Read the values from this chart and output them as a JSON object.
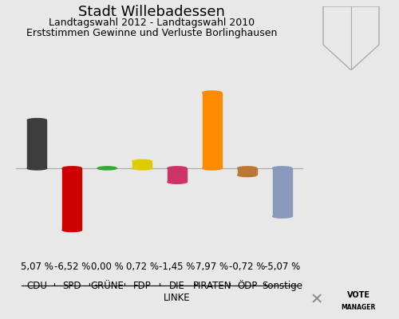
{
  "title": "Stadt Willebadessen",
  "subtitle1": "Landtagswahl 2012 - Landtagswahl 2010",
  "subtitle2": "Erststimmen Gewinne und Verluste Borlinghausen",
  "categories": [
    "CDU",
    "SPD",
    "GRÜNE",
    "FDP",
    "DIE\nLINKE",
    "PIRATEN",
    "ÖDP",
    "Sonstige"
  ],
  "values": [
    5.07,
    -6.52,
    0.0,
    0.72,
    -1.45,
    7.97,
    -0.72,
    -5.07
  ],
  "labels": [
    "5,07 %",
    "-6,52 %",
    "0,00 %",
    "0,72 %",
    "-1,45 %",
    "7,97 %",
    "-0,72 %",
    "-5,07 %"
  ],
  "colors": [
    "#3d3d3d",
    "#cc0000",
    "#33aa33",
    "#ddcc00",
    "#cc3366",
    "#ff8c00",
    "#bb7733",
    "#8899bb"
  ],
  "background_color": "#e8e8e8",
  "ylim": [
    -8.5,
    10.0
  ],
  "bar_width": 0.55,
  "title_fontsize": 13,
  "subtitle_fontsize": 9,
  "label_fontsize": 8.5,
  "category_fontsize": 8.5
}
